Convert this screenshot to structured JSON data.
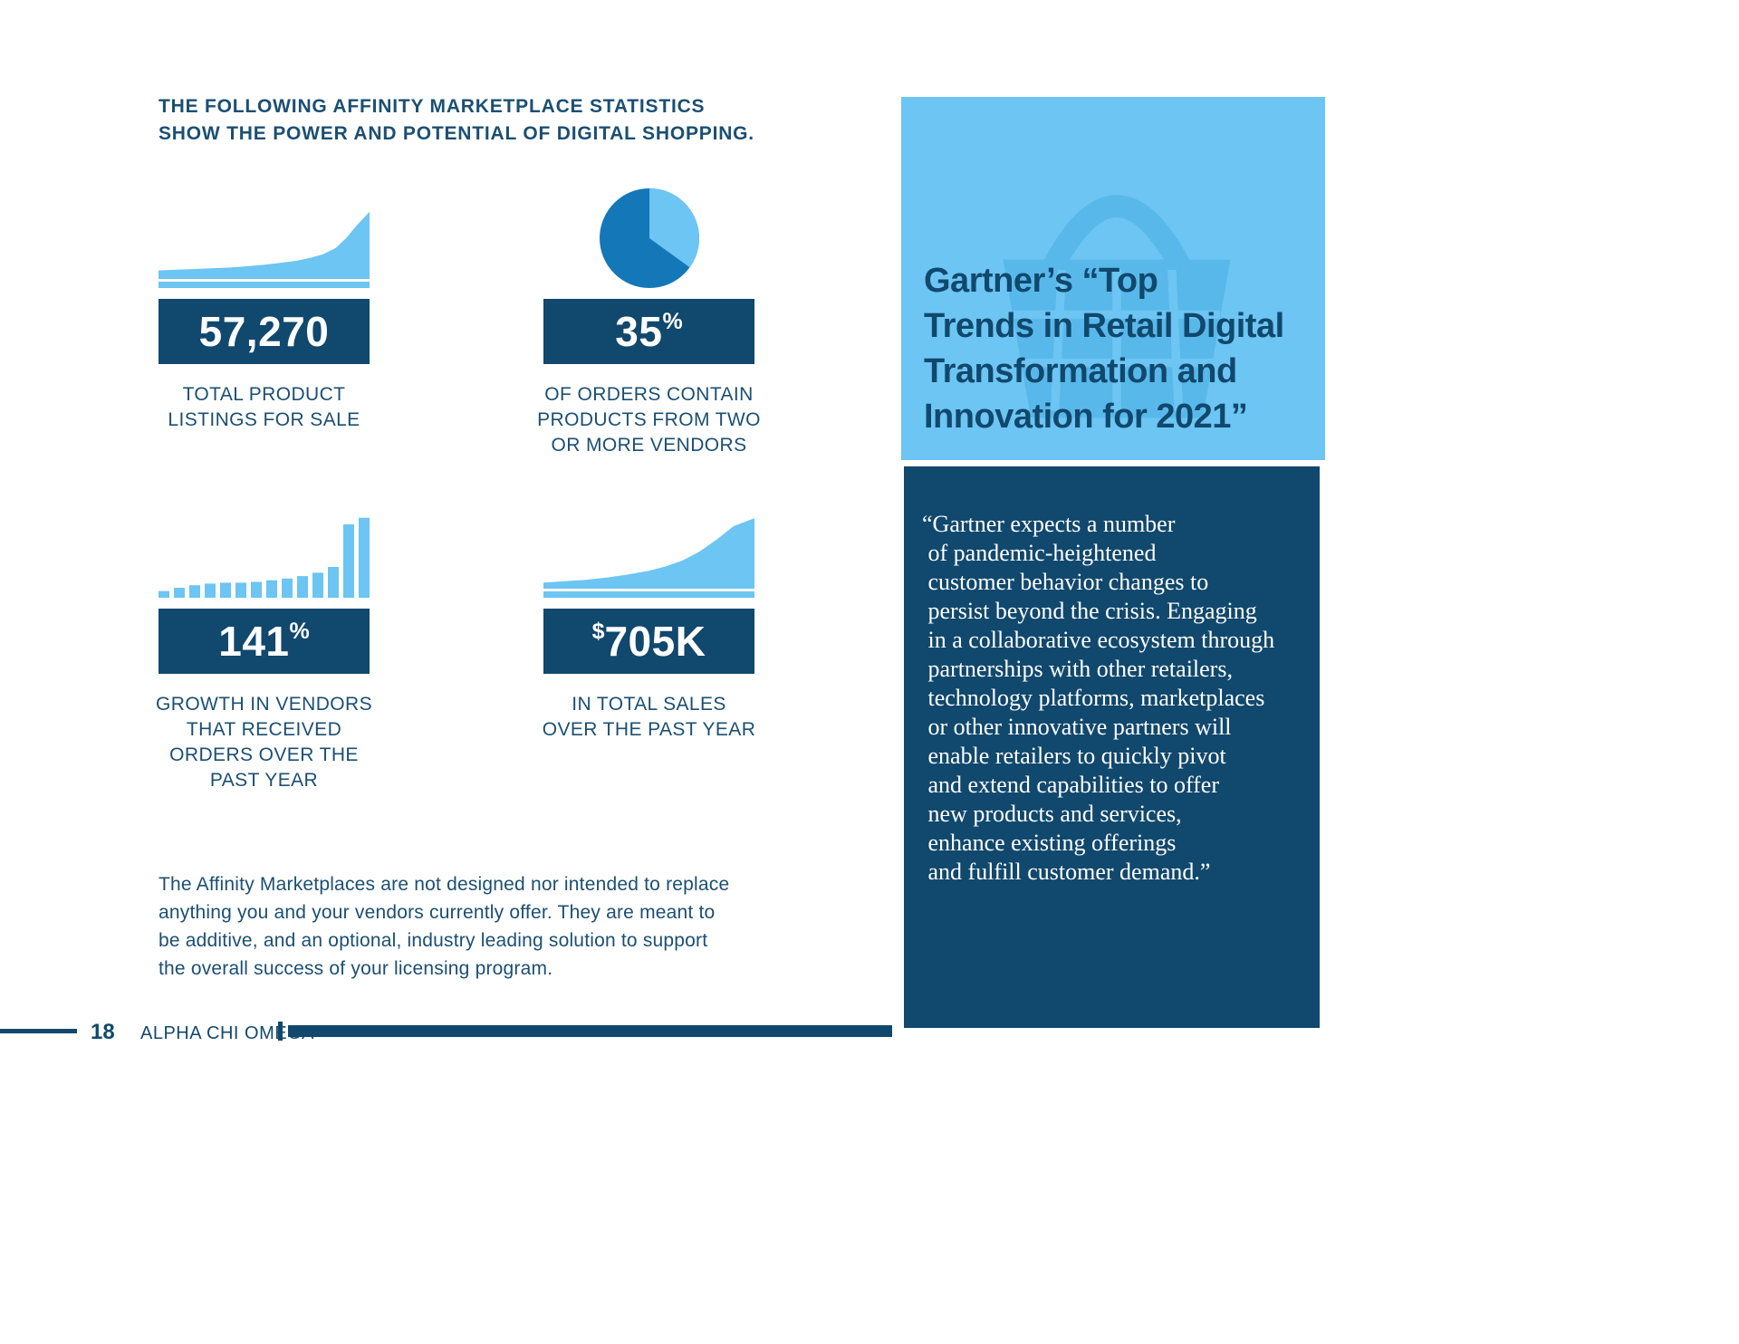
{
  "colors": {
    "navy": "#11486d",
    "light_blue": "#6cc5f2",
    "pie_dark": "#1478b8",
    "basket": "#58b8ea",
    "panel_light": "#6cc5f2"
  },
  "heading": "THE FOLLOWING AFFINITY MARKETPLACE STATISTICS\nSHOW THE POWER AND POTENTIAL OF DIGITAL SHOPPING.",
  "stats": [
    {
      "value": "57,270",
      "caption": "TOTAL PRODUCT\nLISTINGS FOR SALE",
      "chart": {
        "type": "area",
        "points": [
          [
            0,
            12
          ],
          [
            8,
            13
          ],
          [
            16,
            14
          ],
          [
            25,
            15
          ],
          [
            33,
            16
          ],
          [
            42,
            18
          ],
          [
            50,
            20
          ],
          [
            58,
            23
          ],
          [
            66,
            26
          ],
          [
            72,
            30
          ],
          [
            78,
            35
          ],
          [
            84,
            44
          ],
          [
            89,
            58
          ],
          [
            94,
            76
          ],
          [
            100,
            95
          ]
        ]
      }
    },
    {
      "value": "35",
      "suffix": "%",
      "caption": "OF ORDERS CONTAIN\nPRODUCTS FROM TWO\nOR MORE VENDORS",
      "chart": {
        "type": "pie",
        "percent": 35
      }
    },
    {
      "value": "141",
      "suffix": "%",
      "caption": "GROWTH IN VENDORS\nTHAT RECEIVED\nORDERS OVER THE\nPAST YEAR",
      "chart": {
        "type": "bar",
        "values": [
          8,
          12,
          15,
          17,
          18,
          18,
          19,
          21,
          23,
          26,
          30,
          37,
          88,
          96
        ]
      }
    },
    {
      "prefix": "$",
      "value": "705K",
      "caption": "IN TOTAL SALES\nOVER THE PAST YEAR",
      "chart": {
        "type": "area",
        "points": [
          [
            0,
            8
          ],
          [
            10,
            10
          ],
          [
            20,
            12
          ],
          [
            30,
            15
          ],
          [
            40,
            19
          ],
          [
            50,
            24
          ],
          [
            58,
            30
          ],
          [
            66,
            38
          ],
          [
            74,
            50
          ],
          [
            82,
            66
          ],
          [
            90,
            84
          ],
          [
            100,
            95
          ]
        ]
      }
    }
  ],
  "disclaimer": "The Affinity Marketplaces are not designed nor intended to replace\nanything you and your vendors currently offer. They are meant to\nbe additive, and an optional, industry leading solution to support\nthe overall success of your licensing program.",
  "panel": {
    "title": "Gartner’s “Top\nTrends in Retail Digital\nTransformation and\nInnovation for 2021”",
    "quote": "“Gartner expects a number\n of pandemic-heightened\n customer behavior changes to\n persist beyond the crisis. Engaging\n in a collaborative ecosystem through\n partnerships with other retailers,\n technology platforms, marketplaces\n or other innovative partners will\n enable retailers to quickly pivot\n and extend capabilities to offer\n new products and services,\n enhance existing offerings\n and fulfill customer demand.”"
  },
  "footer": {
    "page_number": "18",
    "brand": "ALPHA CHI OMEGA"
  }
}
